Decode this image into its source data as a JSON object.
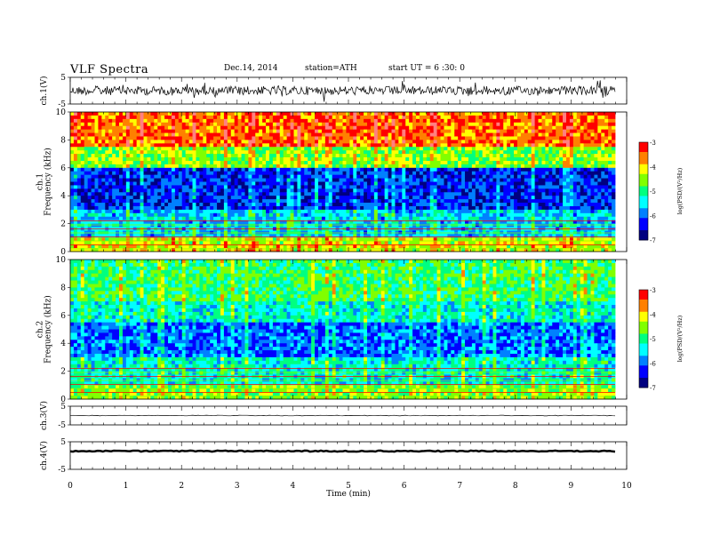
{
  "header": {
    "title": "VLF  Spectra",
    "date": "Dec.14, 2014",
    "station": "station=ATH",
    "start_ut": "start  UT  =   6  :30: 0"
  },
  "colors": {
    "scale": [
      "#000080",
      "#0000ff",
      "#0080ff",
      "#00ffff",
      "#00ff80",
      "#80ff00",
      "#ffff00",
      "#ff8000",
      "#ff0000",
      "#ff8080",
      "#ffffff"
    ],
    "trace": "#000000"
  },
  "chart_data": [
    {
      "type": "line",
      "id": "ch1",
      "ylabel": "ch.1(V)",
      "ylim": [
        -5,
        5
      ],
      "yticks": [
        "5",
        "-5"
      ],
      "description_values": {
        "mean": 0,
        "amplitude": 1.5
      }
    },
    {
      "type": "heatmap",
      "id": "ch1-spec",
      "ylabel": "ch.1\nFrequency  (kHz)",
      "ylim": [
        0,
        10
      ],
      "yticks": [
        "0",
        "2",
        "4",
        "6",
        "8",
        "10"
      ],
      "colorbar": {
        "label": "log(PSD/(V²/Hz)",
        "ticks": [
          "-3",
          "-4",
          "-5",
          "-6",
          "-7"
        ],
        "range": [
          -7,
          -3
        ]
      }
    },
    {
      "type": "heatmap",
      "id": "ch2-spec",
      "ylabel": "ch.2\nFrequency  (kHz)",
      "ylim": [
        0,
        10
      ],
      "yticks": [
        "0",
        "2",
        "4",
        "6",
        "8",
        "10"
      ],
      "colorbar": {
        "label": "log(PSD/(V²/Hz)",
        "ticks": [
          "-3",
          "-4",
          "-5",
          "-6",
          "-7"
        ],
        "range": [
          -7,
          -3
        ]
      }
    },
    {
      "type": "line",
      "id": "ch3",
      "ylabel": "ch.3(V)",
      "ylim": [
        -5,
        5
      ],
      "yticks": [
        "5",
        "-5"
      ]
    },
    {
      "type": "line",
      "id": "ch4",
      "ylabel": "ch.4(V)",
      "ylim": [
        -5,
        5
      ],
      "yticks": [
        "5",
        "-5"
      ]
    }
  ],
  "xaxis": {
    "label": "Time  (min)",
    "ticks": [
      "0",
      "1",
      "2",
      "3",
      "4",
      "5",
      "6",
      "7",
      "8",
      "9",
      "10"
    ],
    "range": [
      0,
      10
    ],
    "data_end": 9.8
  }
}
